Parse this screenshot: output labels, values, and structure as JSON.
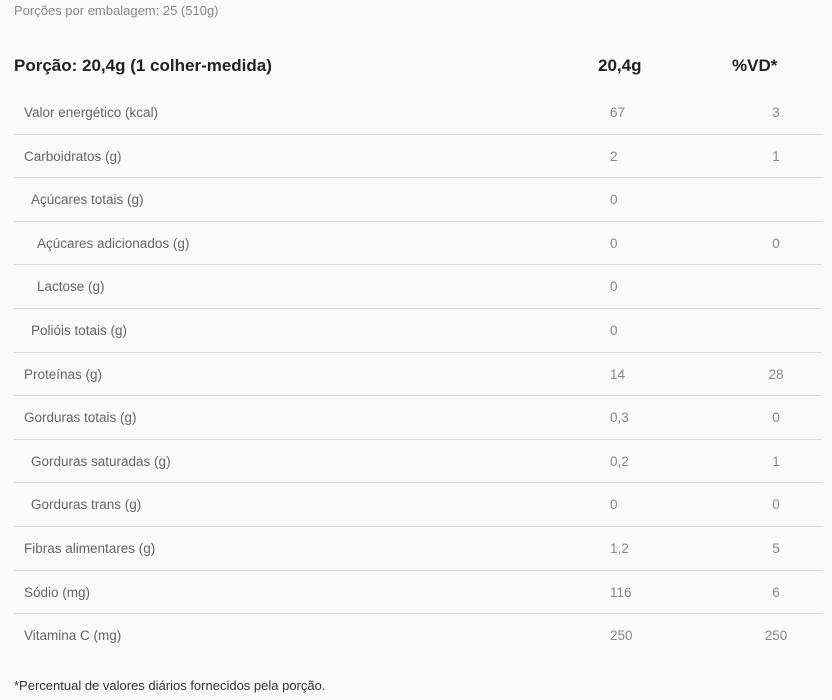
{
  "servings_per_package": "Porções por embalagem: 25 (510g)",
  "header": {
    "portion": "Porção: 20,4g (1 colher-medida)",
    "amount": "20,4g",
    "dv": "%VD*"
  },
  "rows": [
    {
      "label": "Valor energético (kcal)",
      "amount": "67",
      "dv": "3",
      "indent": 0
    },
    {
      "label": "Carboidratos (g)",
      "amount": "2",
      "dv": "1",
      "indent": 0
    },
    {
      "label": "Açúcares totais (g)",
      "amount": "0",
      "dv": "",
      "indent": 1
    },
    {
      "label": "Açúcares adicionados (g)",
      "amount": "0",
      "dv": "0",
      "indent": 2
    },
    {
      "label": "Lactose (g)",
      "amount": "0",
      "dv": "",
      "indent": 2
    },
    {
      "label": "Polióis totais (g)",
      "amount": "0",
      "dv": "",
      "indent": 1
    },
    {
      "label": "Proteínas (g)",
      "amount": "14",
      "dv": "28",
      "indent": 0
    },
    {
      "label": "Gorduras totais (g)",
      "amount": "0,3",
      "dv": "0",
      "indent": 0
    },
    {
      "label": "Gorduras saturadas (g)",
      "amount": "0,2",
      "dv": "1",
      "indent": 1
    },
    {
      "label": "Gorduras trans (g)",
      "amount": "0",
      "dv": "0",
      "indent": 1
    },
    {
      "label": "Fibras alimentares (g)",
      "amount": "1,2",
      "dv": "5",
      "indent": 0
    },
    {
      "label": "Sódio (mg)",
      "amount": "116",
      "dv": "6",
      "indent": 0
    },
    {
      "label": "Vitamina C (mg)",
      "amount": "250",
      "dv": "250",
      "indent": 0
    }
  ],
  "footnote": "*Percentual de valores diários fornecidos pela porção."
}
